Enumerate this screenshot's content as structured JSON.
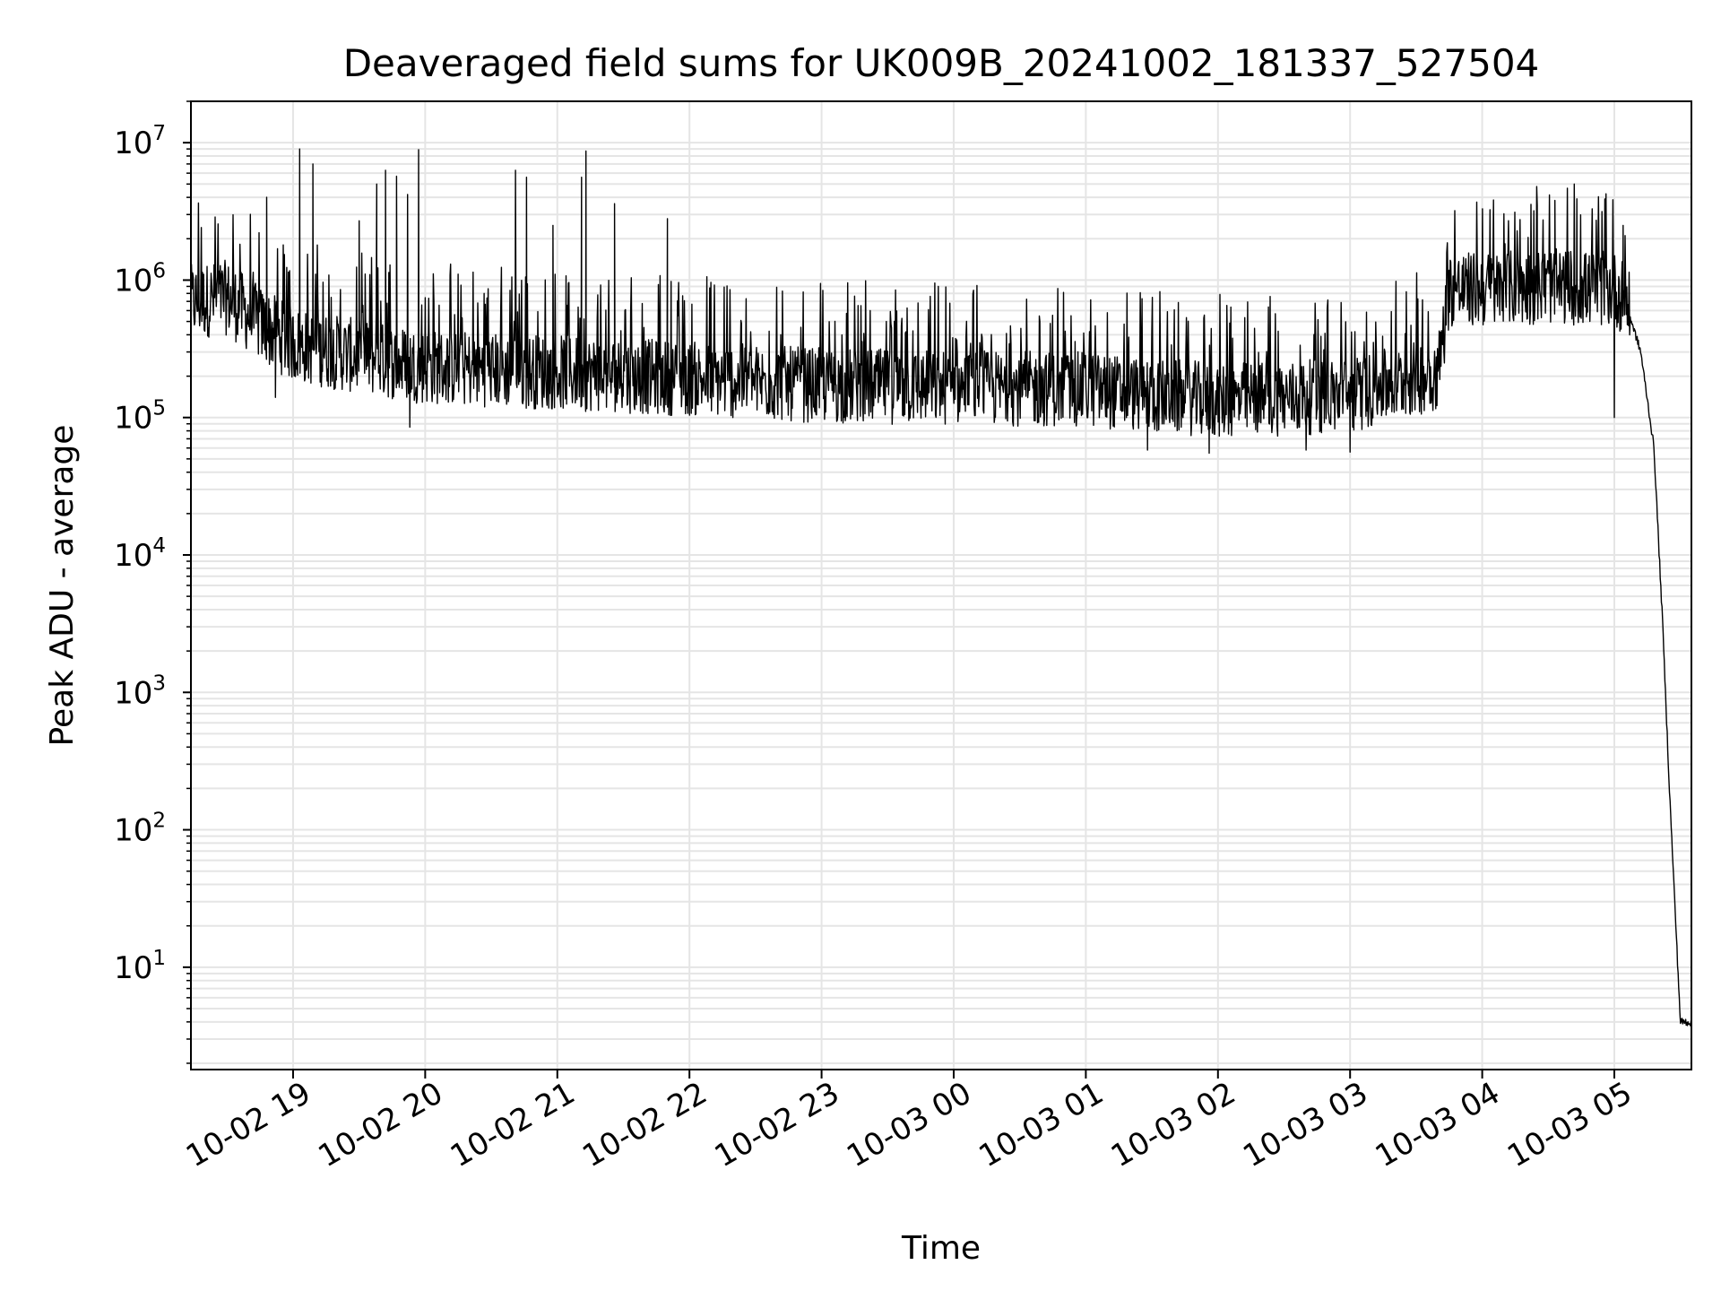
{
  "chart_data": {
    "type": "line",
    "title": "Deaveraged field sums for UK009B_20241002_181337_527504",
    "xlabel": "Time",
    "ylabel": "Peak ADU - average",
    "y_scale": "log",
    "ylim": [
      1.8,
      20000000
    ],
    "xlim": [
      "2024-10-02T18:13:37",
      "2024-10-03T05:35:00"
    ],
    "grid": true,
    "legend": "none",
    "line_color": "#000000",
    "grid_color": "#e5e5e5",
    "x_ticks": [
      {
        "t": "2024-10-02T19:00:00",
        "label": "10-02 19"
      },
      {
        "t": "2024-10-02T20:00:00",
        "label": "10-02 20"
      },
      {
        "t": "2024-10-02T21:00:00",
        "label": "10-02 21"
      },
      {
        "t": "2024-10-02T22:00:00",
        "label": "10-02 22"
      },
      {
        "t": "2024-10-02T23:00:00",
        "label": "10-02 23"
      },
      {
        "t": "2024-10-03T00:00:00",
        "label": "10-03 00"
      },
      {
        "t": "2024-10-03T01:00:00",
        "label": "10-03 01"
      },
      {
        "t": "2024-10-03T02:00:00",
        "label": "10-03 02"
      },
      {
        "t": "2024-10-03T03:00:00",
        "label": "10-03 03"
      },
      {
        "t": "2024-10-03T04:00:00",
        "label": "10-03 04"
      },
      {
        "t": "2024-10-03T05:00:00",
        "label": "10-03 05"
      }
    ],
    "y_ticks": [
      {
        "value": 10,
        "base": "10",
        "exp": "1"
      },
      {
        "value": 100,
        "base": "10",
        "exp": "2"
      },
      {
        "value": 1000,
        "base": "10",
        "exp": "3"
      },
      {
        "value": 10000,
        "base": "10",
        "exp": "4"
      },
      {
        "value": 100000,
        "base": "10",
        "exp": "5"
      },
      {
        "value": 1000000,
        "base": "10",
        "exp": "6"
      },
      {
        "value": 10000000,
        "base": "10",
        "exp": "7"
      }
    ],
    "series": [
      {
        "baseline": [
          {
            "t": "2024-10-02T18:13:37",
            "y": 650000
          },
          {
            "t": "2024-10-02T18:30:00",
            "y": 700000
          },
          {
            "t": "2024-10-02T18:45:00",
            "y": 450000
          },
          {
            "t": "2024-10-02T19:00:00",
            "y": 320000
          },
          {
            "t": "2024-10-02T19:30:00",
            "y": 260000
          },
          {
            "t": "2024-10-02T20:00:00",
            "y": 220000
          },
          {
            "t": "2024-10-02T21:00:00",
            "y": 200000
          },
          {
            "t": "2024-10-02T22:00:00",
            "y": 180000
          },
          {
            "t": "2024-10-02T23:00:00",
            "y": 160000
          },
          {
            "t": "2024-10-03T00:00:00",
            "y": 155000
          },
          {
            "t": "2024-10-03T01:00:00",
            "y": 150000
          },
          {
            "t": "2024-10-03T02:00:00",
            "y": 125000
          },
          {
            "t": "2024-10-03T03:00:00",
            "y": 135000
          },
          {
            "t": "2024-10-03T03:40:00",
            "y": 200000
          },
          {
            "t": "2024-10-03T03:45:00",
            "y": 800000
          },
          {
            "t": "2024-10-03T04:00:00",
            "y": 800000
          },
          {
            "t": "2024-10-03T04:30:00",
            "y": 850000
          },
          {
            "t": "2024-10-03T05:00:00",
            "y": 800000
          },
          {
            "t": "2024-10-03T05:05:00",
            "y": 700000
          },
          {
            "t": "2024-10-03T05:12:00",
            "y": 300000
          },
          {
            "t": "2024-10-03T05:18:00",
            "y": 60000
          },
          {
            "t": "2024-10-03T05:22:00",
            "y": 3000
          },
          {
            "t": "2024-10-03T05:25:00",
            "y": 200
          },
          {
            "t": "2024-10-03T05:30:00",
            "y": 4
          },
          {
            "t": "2024-10-03T05:35:00",
            "y": 4
          }
        ],
        "spikes": [
          {
            "t": "2024-10-02T18:48:00",
            "y": 4000000
          },
          {
            "t": "2024-10-02T19:03:00",
            "y": 9000000
          },
          {
            "t": "2024-10-02T19:09:00",
            "y": 7000000
          },
          {
            "t": "2024-10-02T19:30:00",
            "y": 2700000
          },
          {
            "t": "2024-10-02T19:38:00",
            "y": 5000000
          },
          {
            "t": "2024-10-02T19:42:00",
            "y": 6300000
          },
          {
            "t": "2024-10-02T19:47:00",
            "y": 5700000
          },
          {
            "t": "2024-10-02T19:52:00",
            "y": 4200000
          },
          {
            "t": "2024-10-02T19:57:00",
            "y": 8900000
          },
          {
            "t": "2024-10-02T20:41:00",
            "y": 6300000
          },
          {
            "t": "2024-10-02T20:46:00",
            "y": 5600000
          },
          {
            "t": "2024-10-02T20:58:00",
            "y": 2500000
          },
          {
            "t": "2024-10-02T21:11:00",
            "y": 5600000
          },
          {
            "t": "2024-10-02T21:13:00",
            "y": 8700000
          },
          {
            "t": "2024-10-02T21:26:00",
            "y": 3600000
          },
          {
            "t": "2024-10-02T21:50:00",
            "y": 2800000
          },
          {
            "t": "2024-10-03T04:25:00",
            "y": 3500000
          },
          {
            "t": "2024-10-03T04:33:00",
            "y": 3800000
          },
          {
            "t": "2024-10-03T04:43:00",
            "y": 3900000
          },
          {
            "t": "2024-10-03T04:50:00",
            "y": 3000000
          },
          {
            "t": "2024-10-03T05:04:00",
            "y": 2500000
          }
        ],
        "dips": [
          {
            "t": "2024-10-02T18:52:00",
            "y": 140000
          },
          {
            "t": "2024-10-02T19:53:00",
            "y": 85000
          },
          {
            "t": "2024-10-03T01:28:00",
            "y": 58000
          },
          {
            "t": "2024-10-03T01:56:00",
            "y": 55000
          },
          {
            "t": "2024-10-03T02:40:00",
            "y": 58000
          },
          {
            "t": "2024-10-03T03:00:00",
            "y": 56000
          },
          {
            "t": "2024-10-03T05:00:00",
            "y": 100000
          }
        ]
      }
    ]
  }
}
